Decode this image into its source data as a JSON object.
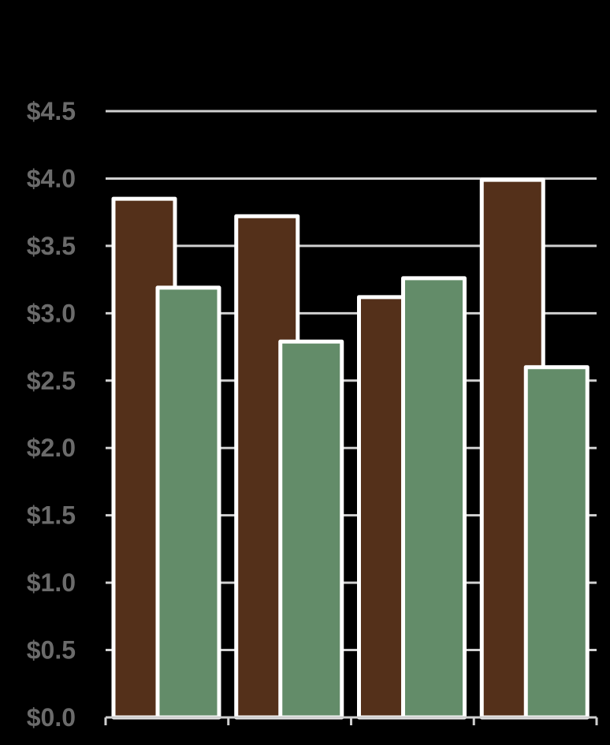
{
  "chart_data": {
    "type": "bar",
    "title": "",
    "xlabel": "",
    "ylabel": "",
    "categories": [
      "",
      "",
      "",
      ""
    ],
    "ylim": [
      0,
      4.5
    ],
    "y_ticks": [
      "$0.0",
      "$0.5",
      "$1.0",
      "$1.5",
      "$2.0",
      "$2.5",
      "$3.0",
      "$3.5",
      "$4.0",
      "$4.5"
    ],
    "y_tick_values": [
      0,
      0.5,
      1.0,
      1.5,
      2.0,
      2.5,
      3.0,
      3.5,
      4.0,
      4.5
    ],
    "grid": true,
    "legend": "none",
    "series": [
      {
        "values": [
          3.85,
          3.72,
          3.12,
          3.99
        ],
        "color": "#54301a"
      },
      {
        "values": [
          3.19,
          2.79,
          3.26,
          2.6
        ],
        "color": "#638c69"
      }
    ],
    "colors": {
      "background": "#000000",
      "gridline": "#d0d0d0",
      "axis": "#cfcfcf",
      "bar_outline": "#ffffff",
      "tick_label": "#6b6b6b"
    }
  }
}
